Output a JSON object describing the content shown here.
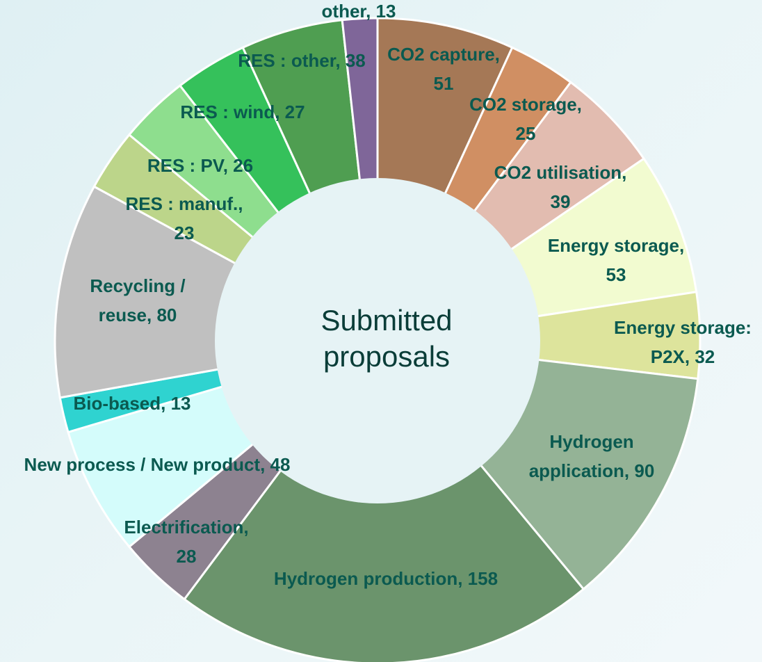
{
  "chart_data": {
    "type": "pie",
    "center_label": "Submitted proposals",
    "values": [
      51,
      25,
      39,
      53,
      32,
      90,
      158,
      28,
      48,
      13,
      80,
      23,
      26,
      27,
      38,
      13
    ],
    "value_labels": [
      "CO2 capture, 51",
      "CO2 storage, 25",
      "CO2 utilisation, 39",
      "Energy storage, 53",
      "Energy storage: P2X, 32",
      "Hydrogen application, 90",
      "Hydrogen production, 158",
      "Electrification, 28",
      "New process / New product, 48",
      "Bio-based, 13",
      "Recycling / reuse, 80",
      "RES : manuf., 23",
      "RES : PV, 26",
      "RES : wind, 27",
      "RES : other, 38",
      "other, 13"
    ],
    "colors": [
      "#a57856",
      "#d08f63",
      "#e2bcb0",
      "#f2fbd0",
      "#dde49c",
      "#94b396",
      "#6b946c",
      "#8d8290",
      "#d4fcfb",
      "#2fd3d0",
      "#c0c0c0",
      "#bcd58a",
      "#8ede8e",
      "#35c15b",
      "#4f9e51",
      "#7f6699"
    ]
  }
}
